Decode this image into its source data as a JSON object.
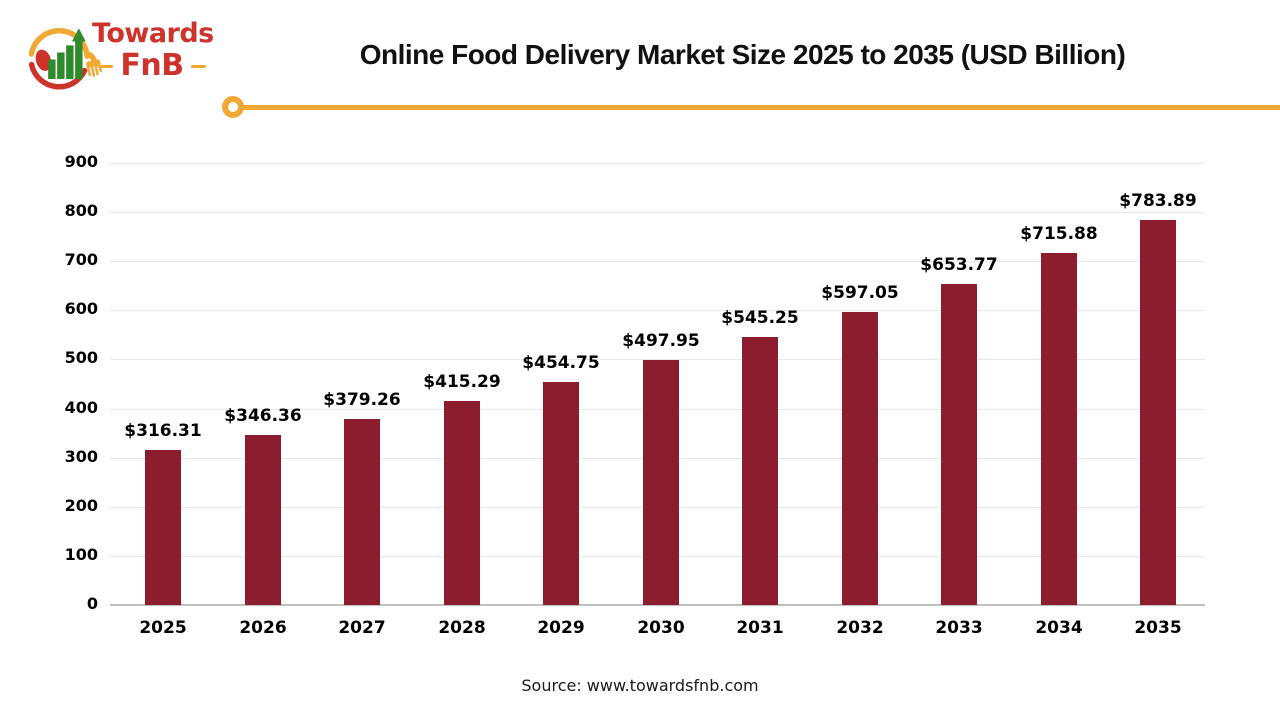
{
  "logo": {
    "name_line1": "Towards",
    "name_line2": "FnB",
    "icon": "chart-bars-with-spoon-and-fork-icon"
  },
  "title": "Online Food Delivery Market Size 2025 to 2035 (USD Billion)",
  "chart_data": {
    "type": "bar",
    "title": "Online Food Delivery Market Size 2025 to 2035 (USD Billion)",
    "categories": [
      "2025",
      "2026",
      "2027",
      "2028",
      "2029",
      "2030",
      "2031",
      "2032",
      "2033",
      "2034",
      "2035"
    ],
    "values": [
      316.31,
      346.36,
      379.26,
      415.29,
      454.75,
      497.95,
      545.25,
      597.05,
      653.77,
      715.88,
      783.89
    ],
    "data_labels": [
      "$316.31",
      "$346.36",
      "$379.26",
      "$415.29",
      "$454.75",
      "$497.95",
      "$545.25",
      "$597.05",
      "$653.77",
      "$715.88",
      "$783.89"
    ],
    "xlabel": "",
    "ylabel": "",
    "ylim": [
      0,
      900
    ],
    "yticks": [
      0,
      100,
      200,
      300,
      400,
      500,
      600,
      700,
      800,
      900
    ],
    "grid": true,
    "legend": false,
    "bar_color": "#8B1D2E"
  },
  "footer": {
    "source_text": "Source: www.towardsfnb.com"
  },
  "colors": {
    "bar_maroon": "#8B1D2E",
    "accent_yellow": "#F2A934",
    "logo_red": "#CE332B",
    "logo_green": "#2E8B2B",
    "gridline_gray": "#E8E8E8",
    "axis_gray": "#BFBFBF",
    "text_black": "#000000"
  }
}
